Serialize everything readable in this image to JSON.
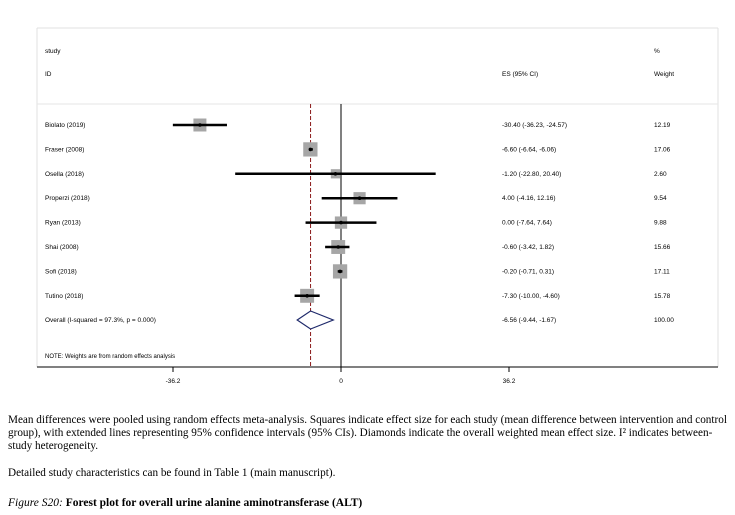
{
  "header": {
    "study_label": "study",
    "id_label": "ID",
    "es_label": "ES (95% CI)",
    "pct_label": "%",
    "weight_label": "Weight"
  },
  "studies": [
    {
      "id": "Biolato (2019)",
      "es": -30.4,
      "lo": -36.23,
      "hi": -24.57,
      "ci_text": "-30.40 (-36.23, -24.57)",
      "weight": 12.19,
      "weight_text": "12.19"
    },
    {
      "id": "Fraser (2008)",
      "es": -6.6,
      "lo": -6.64,
      "hi": -6.06,
      "ci_text": "-6.60 (-6.64, -6.06)",
      "weight": 17.06,
      "weight_text": "17.06"
    },
    {
      "id": "Osella (2018)",
      "es": -1.2,
      "lo": -22.8,
      "hi": 20.4,
      "ci_text": "-1.20 (-22.80, 20.40)",
      "weight": 2.6,
      "weight_text": "2.60"
    },
    {
      "id": "Properzi (2018)",
      "es": 4.0,
      "lo": -4.16,
      "hi": 12.16,
      "ci_text": "4.00 (-4.16, 12.16)",
      "weight": 9.54,
      "weight_text": "9.54"
    },
    {
      "id": "Ryan (2013)",
      "es": 0.0,
      "lo": -7.64,
      "hi": 7.64,
      "ci_text": "0.00 (-7.64, 7.64)",
      "weight": 9.88,
      "weight_text": "9.88"
    },
    {
      "id": "Shai (2008)",
      "es": -0.6,
      "lo": -3.42,
      "hi": 1.82,
      "ci_text": "-0.60 (-3.42, 1.82)",
      "weight": 15.66,
      "weight_text": "15.66"
    },
    {
      "id": "Sofi (2018)",
      "es": -0.2,
      "lo": -0.71,
      "hi": 0.31,
      "ci_text": "-0.20 (-0.71, 0.31)",
      "weight": 17.11,
      "weight_text": "17.11"
    },
    {
      "id": "Tutino (2018)",
      "es": -7.3,
      "lo": -10.0,
      "hi": -4.6,
      "ci_text": "-7.30 (-10.00, -4.60)",
      "weight": 15.78,
      "weight_text": "15.78"
    }
  ],
  "overall": {
    "label": "Overall  (I-squared = 97.3%, p = 0.000)",
    "es": -6.56,
    "lo": -9.44,
    "hi": -1.67,
    "ci_text": "-6.56 (-9.44, -1.67)",
    "weight_text": "100.00"
  },
  "note": "NOTE: Weights are from random effects analysis",
  "chart_data": {
    "type": "forest",
    "x_ticks": [
      -36.2,
      0,
      36.2
    ],
    "x_tick_labels": [
      "-36.2",
      "0",
      "36.2"
    ],
    "xlim": [
      -36.2,
      36.2
    ],
    "null_line": 0,
    "pooled_line": -6.56,
    "colors": {
      "square": "#a6a6a6",
      "ci_line": "#000000",
      "pooled_line": "#8b1a1a",
      "diamond": "#1f2a6b"
    }
  },
  "caption": {
    "desc": "Mean differences were pooled using random effects meta-analysis. Squares indicate effect size for each study (mean difference between intervention and control group), with extended lines representing 95% confidence intervals (95% CIs). Diamonds indicate the overall weighted mean effect size. I² indicates between-study heterogeneity.",
    "details": "Detailed study characteristics can be found in Table 1 (main manuscript).",
    "figure_label": "Figure S20:",
    "figure_text": " Forest plot for overall urine alanine aminotransferase (ALT)"
  }
}
